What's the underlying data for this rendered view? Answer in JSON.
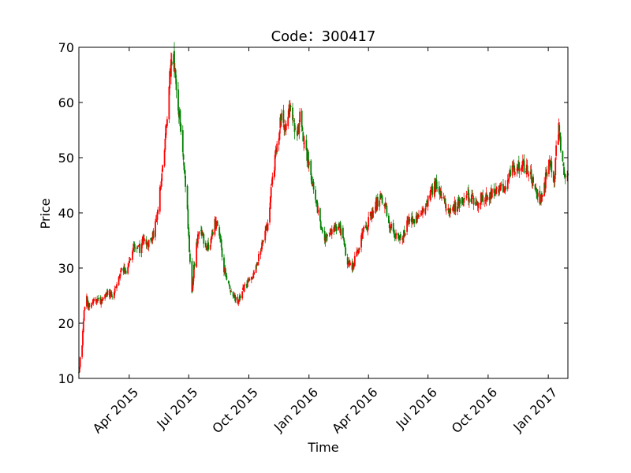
{
  "chart_data": {
    "type": "candlestick",
    "title": "Code：300417",
    "xlabel": "Time",
    "ylabel": "Price",
    "ylim": [
      10,
      70
    ],
    "xlim": [
      "2015-01-14",
      "2017-01-31"
    ],
    "grid": false,
    "legend": "none",
    "up_color": "#ff0000",
    "down_color": "#008000",
    "y_ticks": [
      "10",
      "20",
      "30",
      "40",
      "50",
      "60",
      "70"
    ],
    "x_ticks": [
      {
        "date": "2015-04-01",
        "label": "Apr 2015"
      },
      {
        "date": "2015-07-01",
        "label": "Jul 2015"
      },
      {
        "date": "2015-10-01",
        "label": "Oct 2015"
      },
      {
        "date": "2016-01-01",
        "label": "Jan 2016"
      },
      {
        "date": "2016-04-01",
        "label": "Apr 2016"
      },
      {
        "date": "2016-07-01",
        "label": "Jul 2016"
      },
      {
        "date": "2016-10-01",
        "label": "Oct 2016"
      },
      {
        "date": "2017-01-01",
        "label": "Jan 2017"
      }
    ],
    "close_trend": [
      [
        "2015-01-14",
        11.0
      ],
      [
        "2015-01-16",
        13.5
      ],
      [
        "2015-01-19",
        16.0
      ],
      [
        "2015-01-20",
        18.5
      ],
      [
        "2015-01-21",
        20.8
      ],
      [
        "2015-01-22",
        22.5
      ],
      [
        "2015-01-26",
        24.8
      ],
      [
        "2015-01-28",
        23.0
      ],
      [
        "2015-02-02",
        23.8
      ],
      [
        "2015-02-09",
        24.2
      ],
      [
        "2015-02-16",
        24.0
      ],
      [
        "2015-02-27",
        25.5
      ],
      [
        "2015-03-06",
        25.0
      ],
      [
        "2015-03-13",
        27.5
      ],
      [
        "2015-03-20",
        30.0
      ],
      [
        "2015-03-27",
        29.5
      ],
      [
        "2015-04-03",
        32.0
      ],
      [
        "2015-04-10",
        34.0
      ],
      [
        "2015-04-17",
        33.5
      ],
      [
        "2015-04-24",
        35.5
      ],
      [
        "2015-05-01",
        34.5
      ],
      [
        "2015-05-08",
        36.0
      ],
      [
        "2015-05-15",
        41.0
      ],
      [
        "2015-05-22",
        48.0
      ],
      [
        "2015-05-29",
        58.0
      ],
      [
        "2015-06-03",
        66.0
      ],
      [
        "2015-06-08",
        68.5
      ],
      [
        "2015-06-12",
        62.0
      ],
      [
        "2015-06-17",
        57.0
      ],
      [
        "2015-06-23",
        50.0
      ],
      [
        "2015-06-29",
        40.0
      ],
      [
        "2015-07-02",
        33.0
      ],
      [
        "2015-07-06",
        25.0
      ],
      [
        "2015-07-09",
        30.0
      ],
      [
        "2015-07-14",
        35.0
      ],
      [
        "2015-07-20",
        37.0
      ],
      [
        "2015-07-27",
        33.0
      ],
      [
        "2015-08-03",
        35.0
      ],
      [
        "2015-08-10",
        38.0
      ],
      [
        "2015-08-17",
        36.5
      ],
      [
        "2015-08-24",
        30.0
      ],
      [
        "2015-08-31",
        27.0
      ],
      [
        "2015-09-07",
        25.0
      ],
      [
        "2015-09-14",
        23.5
      ],
      [
        "2015-09-21",
        26.0
      ],
      [
        "2015-09-28",
        27.0
      ],
      [
        "2015-10-09",
        29.0
      ],
      [
        "2015-10-16",
        32.0
      ],
      [
        "2015-10-23",
        35.0
      ],
      [
        "2015-10-30",
        38.0
      ],
      [
        "2015-11-06",
        46.0
      ],
      [
        "2015-11-13",
        52.0
      ],
      [
        "2015-11-20",
        58.0
      ],
      [
        "2015-11-27",
        55.0
      ],
      [
        "2015-12-04",
        60.0
      ],
      [
        "2015-12-11",
        54.0
      ],
      [
        "2015-12-18",
        57.0
      ],
      [
        "2015-12-25",
        53.0
      ],
      [
        "2016-01-04",
        47.0
      ],
      [
        "2016-01-11",
        42.0
      ],
      [
        "2016-01-18",
        38.0
      ],
      [
        "2016-01-25",
        35.0
      ],
      [
        "2016-02-01",
        36.0
      ],
      [
        "2016-02-15",
        38.0
      ],
      [
        "2016-02-22",
        35.0
      ],
      [
        "2016-02-29",
        31.0
      ],
      [
        "2016-03-07",
        30.0
      ],
      [
        "2016-03-14",
        32.5
      ],
      [
        "2016-03-21",
        36.0
      ],
      [
        "2016-03-28",
        37.0
      ],
      [
        "2016-04-05",
        40.0
      ],
      [
        "2016-04-12",
        41.0
      ],
      [
        "2016-04-19",
        43.0
      ],
      [
        "2016-04-26",
        42.0
      ],
      [
        "2016-05-03",
        38.0
      ],
      [
        "2016-05-10",
        36.5
      ],
      [
        "2016-05-17",
        35.5
      ],
      [
        "2016-05-24",
        36.0
      ],
      [
        "2016-05-31",
        38.0
      ],
      [
        "2016-06-07",
        39.0
      ],
      [
        "2016-06-14",
        38.5
      ],
      [
        "2016-06-21",
        40.0
      ],
      [
        "2016-06-28",
        42.0
      ],
      [
        "2016-07-05",
        44.0
      ],
      [
        "2016-07-12",
        45.0
      ],
      [
        "2016-07-19",
        43.5
      ],
      [
        "2016-07-26",
        42.0
      ],
      [
        "2016-08-02",
        41.0
      ],
      [
        "2016-08-09",
        41.0
      ],
      [
        "2016-08-16",
        41.5
      ],
      [
        "2016-08-23",
        42.0
      ],
      [
        "2016-08-30",
        43.0
      ],
      [
        "2016-09-06",
        42.5
      ],
      [
        "2016-09-13",
        42.0
      ],
      [
        "2016-09-20",
        42.5
      ],
      [
        "2016-09-27",
        43.0
      ],
      [
        "2016-10-10",
        43.5
      ],
      [
        "2016-10-17",
        44.0
      ],
      [
        "2016-10-24",
        44.5
      ],
      [
        "2016-10-31",
        46.0
      ],
      [
        "2016-11-07",
        47.5
      ],
      [
        "2016-11-14",
        48.5
      ],
      [
        "2016-11-21",
        49.0
      ],
      [
        "2016-11-28",
        48.0
      ],
      [
        "2016-12-05",
        46.5
      ],
      [
        "2016-12-12",
        44.0
      ],
      [
        "2016-12-19",
        42.0
      ],
      [
        "2016-12-26",
        45.0
      ],
      [
        "2017-01-03",
        50.0
      ],
      [
        "2017-01-06",
        47.0
      ],
      [
        "2017-01-10",
        46.0
      ],
      [
        "2017-01-13",
        51.0
      ],
      [
        "2017-01-18",
        56.0
      ],
      [
        "2017-01-20",
        50.0
      ],
      [
        "2017-01-24",
        48.0
      ],
      [
        "2017-01-27",
        46.5
      ],
      [
        "2017-01-31",
        46.5
      ]
    ]
  }
}
